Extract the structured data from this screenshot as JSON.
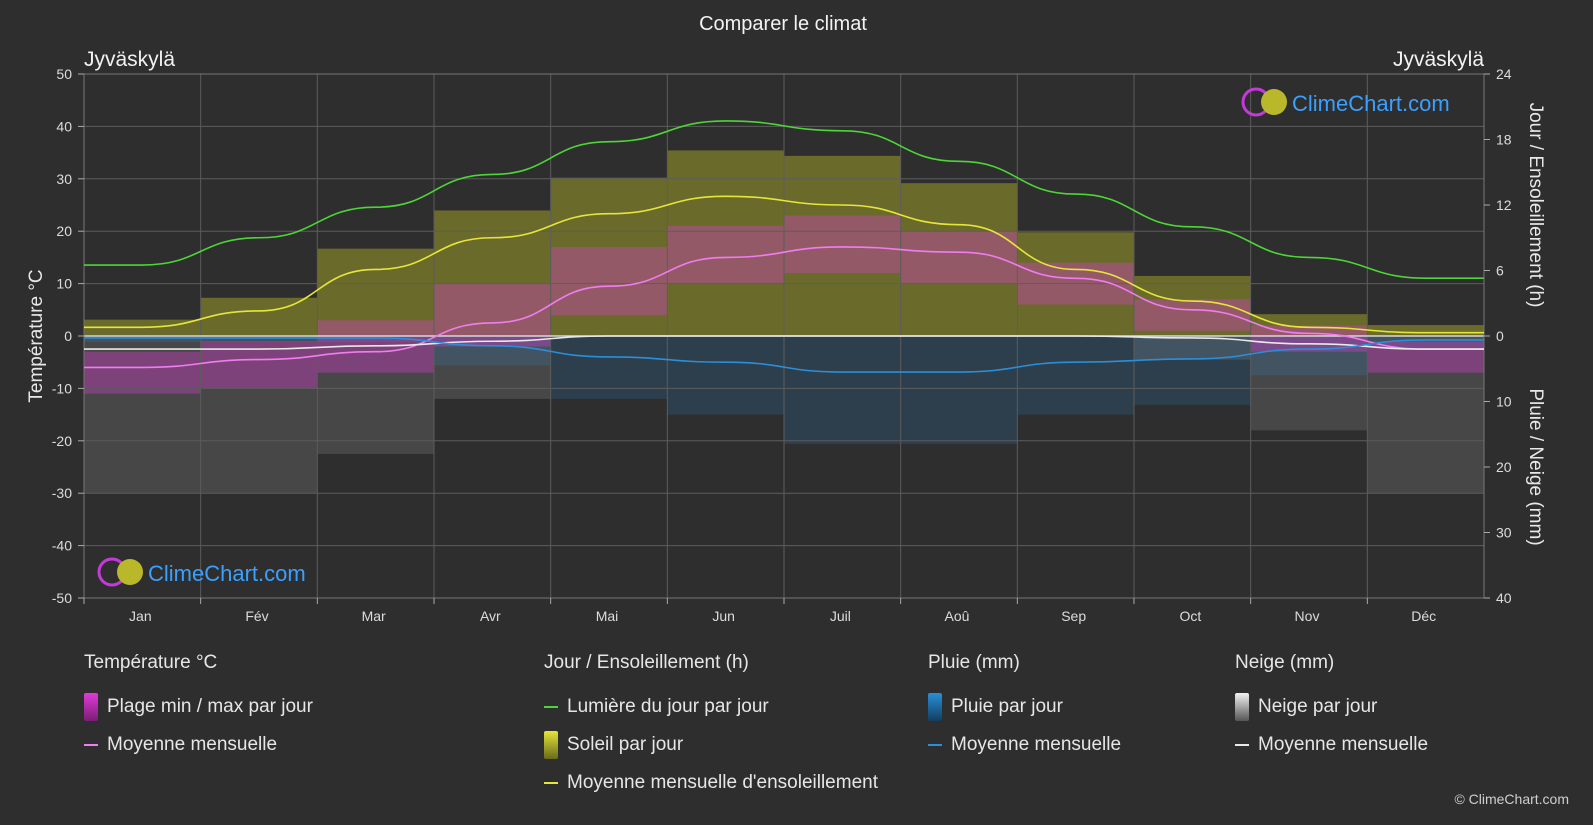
{
  "title": "Comparer le climat",
  "location_left": "Jyväskylä",
  "location_right": "Jyväskylä",
  "copyright": "© ClimeChart.com",
  "logo_text": "ClimeChart.com",
  "colors": {
    "background": "#2e2e2e",
    "daylight": "#4cd636",
    "sunshine_line": "#e6e63a",
    "sunshine_fill": "#9c9c2a",
    "temp_range": "#e23ad8",
    "temp_mean": "#f07cf0",
    "rain": "#2a8fd9",
    "snow": "#e8e8e8",
    "logo_blue": "#3aa0ff"
  },
  "legend": {
    "temp": {
      "title": "Température °C",
      "range_label": "Plage min / max par jour",
      "mean_label": "Moyenne mensuelle"
    },
    "sun": {
      "title": "Jour / Ensoleillement (h)",
      "daylight_label": "Lumière du jour par jour",
      "sun_label": "Soleil par jour",
      "sun_mean_label": "Moyenne mensuelle d'ensoleillement"
    },
    "rain": {
      "title": "Pluie (mm)",
      "rain_label": "Pluie par jour",
      "mean_label": "Moyenne mensuelle"
    },
    "snow": {
      "title": "Neige (mm)",
      "snow_label": "Neige par jour",
      "mean_label": "Moyenne mensuelle"
    }
  },
  "chart_data": {
    "type": "line",
    "title": "Comparer le climat",
    "categories": [
      "Jan",
      "Fév",
      "Mar",
      "Avr",
      "Mai",
      "Jun",
      "Juil",
      "Aoû",
      "Sep",
      "Oct",
      "Nov",
      "Déc"
    ],
    "y_left": {
      "label": "Température °C",
      "range": [
        -50,
        50
      ],
      "ticks": [
        50,
        40,
        30,
        20,
        10,
        0,
        -10,
        -20,
        -30,
        -40,
        -50
      ]
    },
    "y_right_top": {
      "label": "Jour / Ensoleillement (h)",
      "range": [
        0,
        24
      ],
      "ticks": [
        24,
        18,
        12,
        6,
        0
      ]
    },
    "y_right_bottom": {
      "label": "Pluie / Neige (mm)",
      "range": [
        0,
        40
      ],
      "ticks": [
        10,
        20,
        30,
        40
      ]
    },
    "grid": true,
    "series": [
      {
        "name": "Lumière du jour par jour",
        "axis": "hours",
        "values": [
          6.5,
          9.0,
          11.8,
          14.8,
          17.8,
          19.7,
          18.8,
          16.0,
          13.0,
          10.0,
          7.2,
          5.3
        ]
      },
      {
        "name": "Moyenne mensuelle d'ensoleillement",
        "axis": "hours",
        "values": [
          0.8,
          2.3,
          6.1,
          9.0,
          11.2,
          12.8,
          12.0,
          10.2,
          6.1,
          3.2,
          0.8,
          0.3
        ]
      },
      {
        "name": "Soleil par jour",
        "axis": "hours",
        "values": [
          1.5,
          3.5,
          8.0,
          11.5,
          14.5,
          17.0,
          16.5,
          14.0,
          9.5,
          5.5,
          2.0,
          1.0
        ]
      },
      {
        "name": "Température moyenne mensuelle",
        "axis": "temp",
        "values": [
          -6.0,
          -4.5,
          -3.0,
          2.5,
          9.5,
          15.0,
          17.0,
          16.0,
          11.0,
          5.0,
          0.5,
          -2.5
        ]
      },
      {
        "name": "Température max",
        "axis": "temp",
        "values": [
          -3,
          -1,
          3,
          10,
          17,
          21,
          23,
          20,
          14,
          7,
          2,
          -1
        ]
      },
      {
        "name": "Température min",
        "axis": "temp",
        "values": [
          -11,
          -10,
          -7,
          -2,
          4,
          10,
          12,
          10,
          6,
          1,
          -3,
          -7
        ]
      },
      {
        "name": "Pluie moyenne mensuelle",
        "axis": "mm",
        "values": [
          0.3,
          0.3,
          0.3,
          1.5,
          3.2,
          4.0,
          5.5,
          5.5,
          4.0,
          3.5,
          2.0,
          0.6
        ]
      },
      {
        "name": "Neige moyenne mensuelle",
        "axis": "mm",
        "values": [
          2.0,
          2.0,
          1.5,
          0.8,
          0.0,
          0.0,
          0.0,
          0.0,
          0.0,
          0.3,
          1.2,
          2.0
        ]
      }
    ]
  }
}
